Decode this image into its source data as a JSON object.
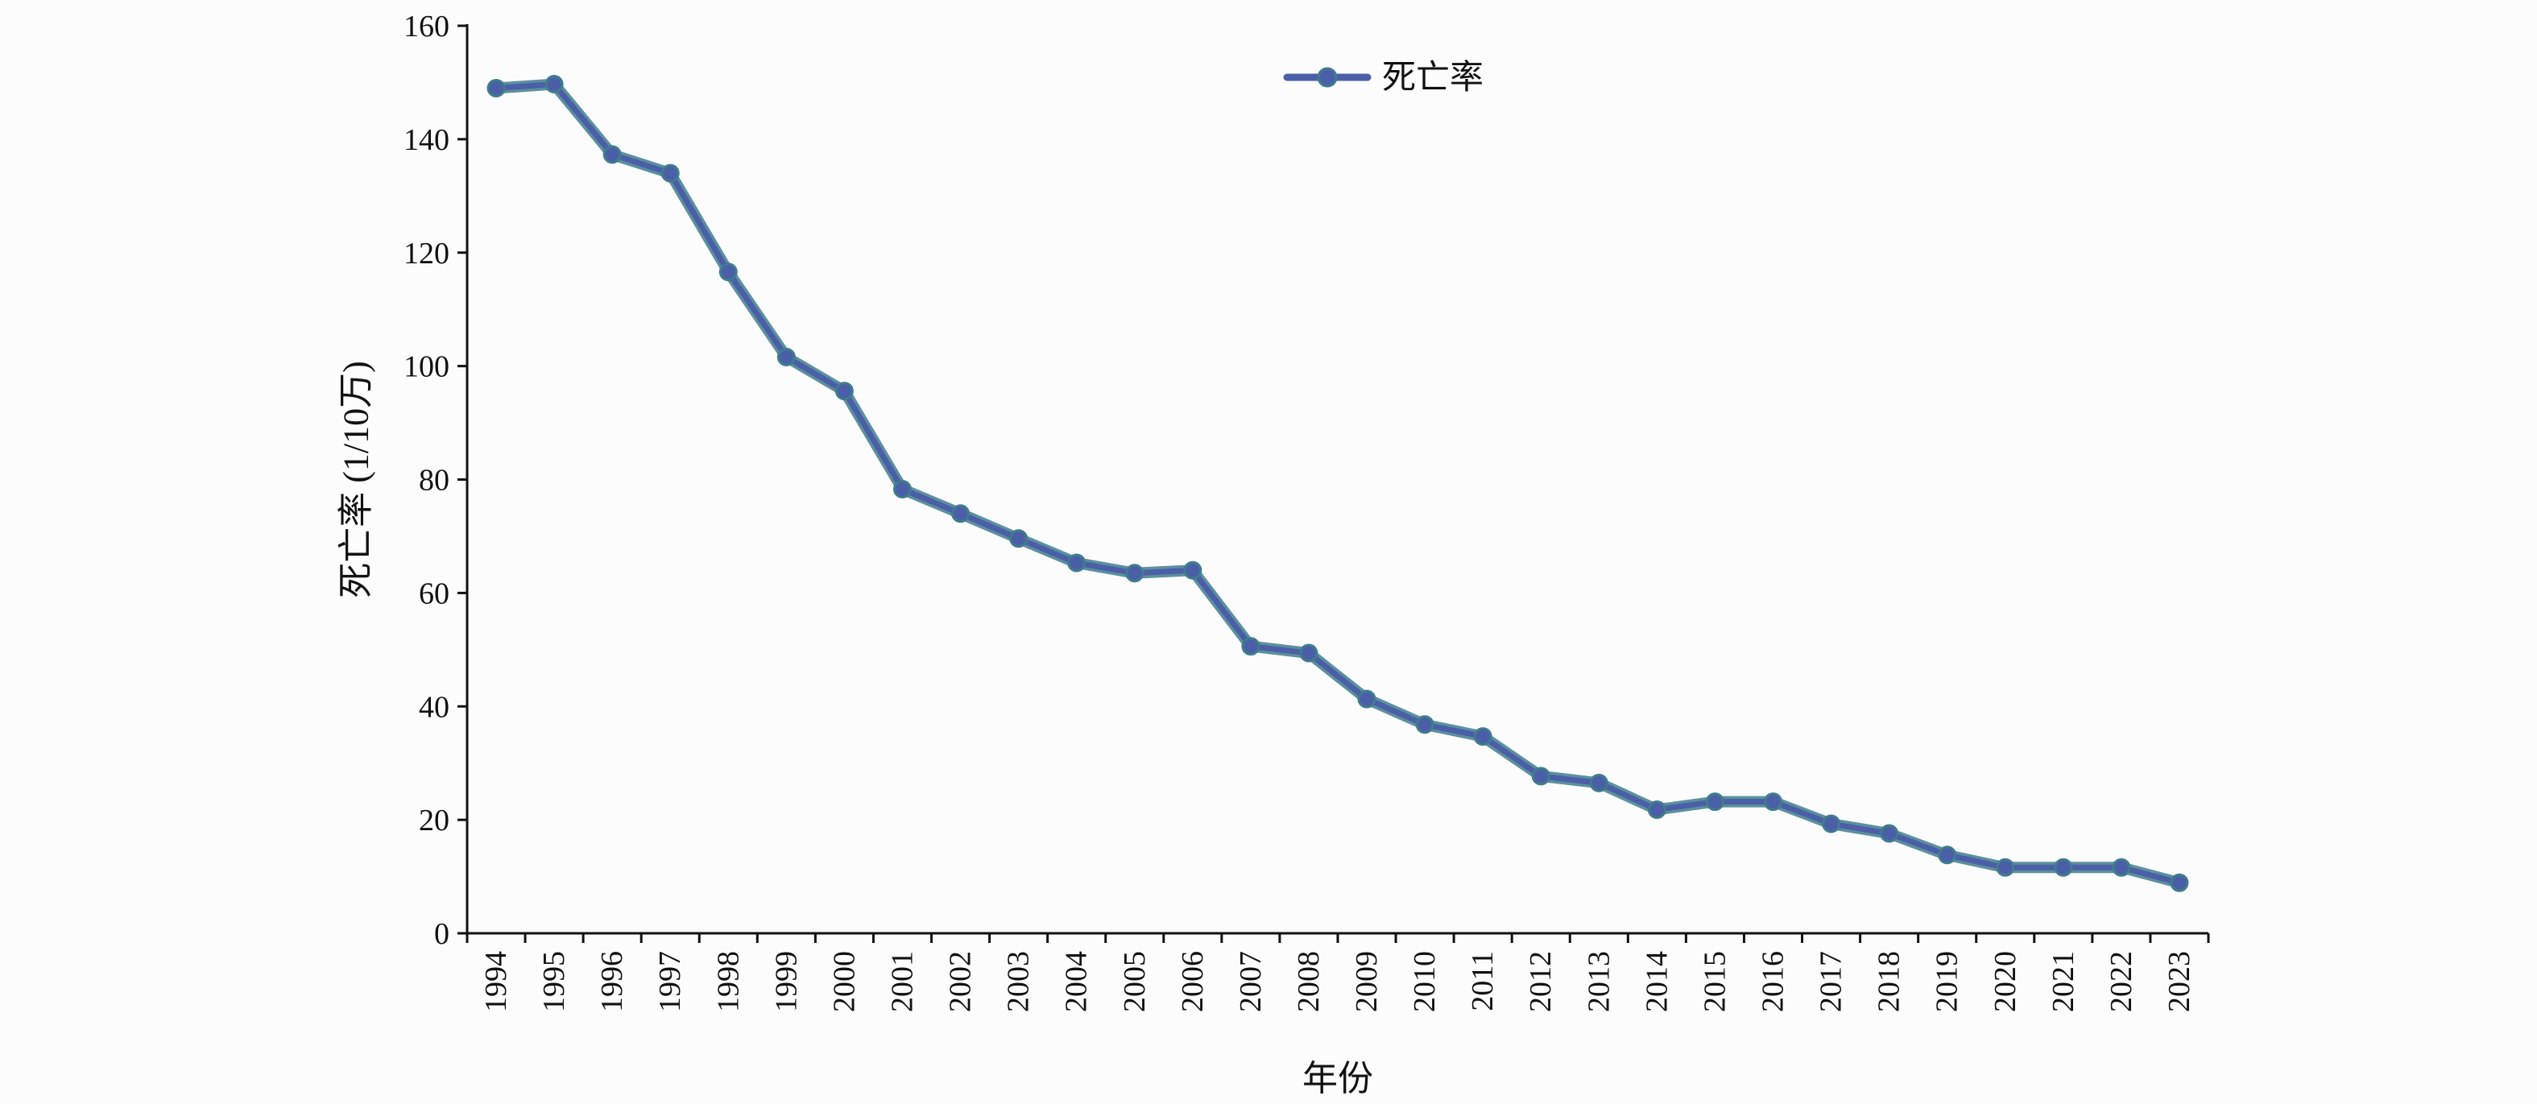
{
  "chart_data": {
    "type": "line",
    "title": "",
    "xlabel": "年份",
    "ylabel": "死亡率 (1/10万)",
    "ylim": [
      0,
      160
    ],
    "yticks": [
      0,
      20,
      40,
      60,
      80,
      100,
      120,
      140,
      160
    ],
    "grid": false,
    "legend": {
      "placement": "top-center"
    },
    "categories": [
      "1994",
      "1995",
      "1996",
      "1997",
      "1998",
      "1999",
      "2000",
      "2001",
      "2002",
      "2003",
      "2004",
      "2005",
      "2006",
      "2007",
      "2008",
      "2009",
      "2010",
      "2011",
      "2012",
      "2013",
      "2014",
      "2015",
      "2016",
      "2017",
      "2018",
      "2019",
      "2020",
      "2021",
      "2022",
      "2023"
    ],
    "series": [
      {
        "name": "死亡率",
        "color": "#4a5fa8",
        "values": [
          149,
          149.7,
          137.3,
          134,
          116.6,
          101.6,
          95.6,
          78.3,
          74,
          69.6,
          65.3,
          63.5,
          64,
          50.6,
          49.4,
          41.3,
          36.8,
          34.7,
          27.7,
          26.5,
          21.8,
          23.2,
          23.2,
          19.3,
          17.6,
          13.8,
          11.6,
          11.6,
          11.6,
          8.9
        ]
      }
    ]
  }
}
